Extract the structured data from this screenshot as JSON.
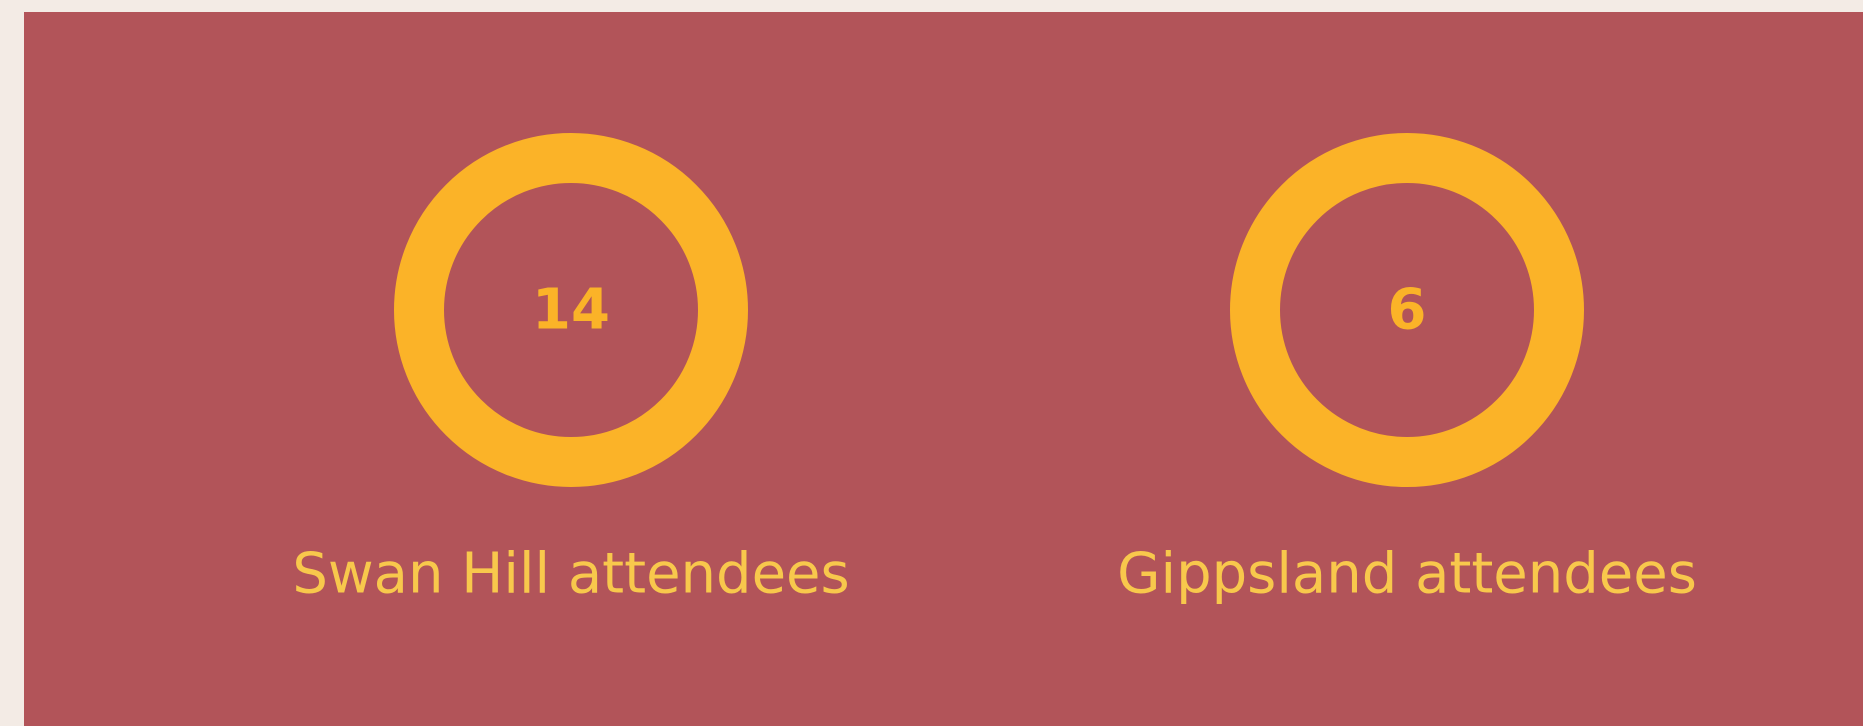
{
  "items": [
    {
      "value": 14,
      "label": "Swan Hill attendees"
    },
    {
      "value": 6,
      "label": "Gippsland attendees"
    }
  ]
}
